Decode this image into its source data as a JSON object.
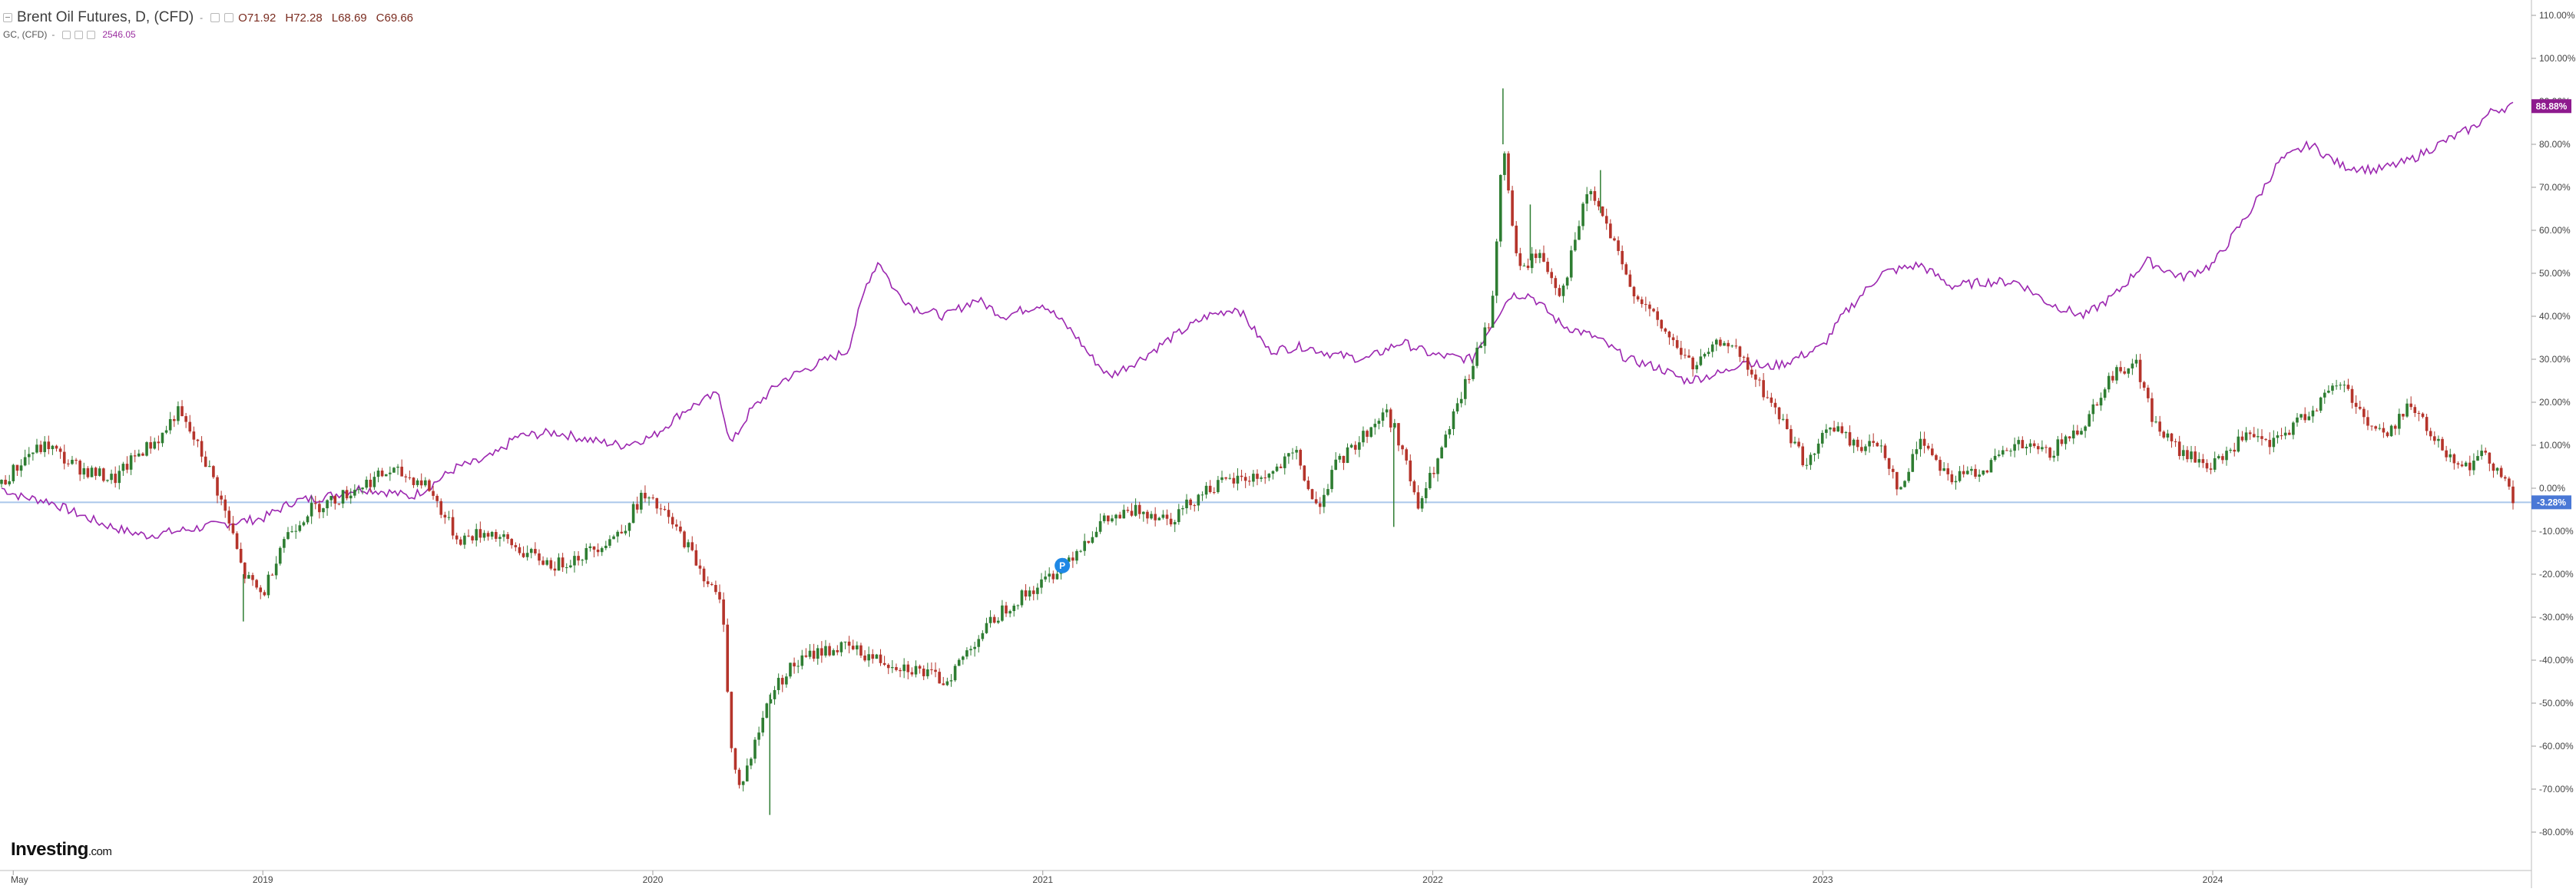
{
  "legend": {
    "symbol": "Brent Oil Futures, D, (CFD)",
    "dash": "-",
    "ohlc": {
      "open": "O71.92",
      "high": "H72.28",
      "low": "L68.69",
      "close": "C69.66"
    },
    "compare_symbol": "GC, (CFD)",
    "compare_value": "2546.05"
  },
  "logo": {
    "name": "Investing",
    "suffix": ".com"
  },
  "colors": {
    "up_candle": "#2e7d32",
    "down_candle": "#b5342b",
    "gold_line": "#9c27b0",
    "baseline": "#aac7ea",
    "gold_badge": "#8e1a8e",
    "brent_badge": "#4a78d6"
  },
  "icons": {
    "legend_toggle": "collapse-icon",
    "marker": "event-marker-icon"
  },
  "chart_data": {
    "type": "line",
    "y_unit": "percent change",
    "y_axis_side": "right",
    "ylim": [
      -84,
      113
    ],
    "yticks": [
      110,
      100,
      90,
      80,
      70,
      60,
      50,
      40,
      30,
      20,
      10,
      0,
      -10,
      -20,
      -30,
      -40,
      -50,
      -60,
      -70,
      -80
    ],
    "ytick_labels": [
      "110.00%",
      "100.00%",
      "90.00%",
      "80.00%",
      "70.00%",
      "60.00%",
      "50.00%",
      "40.00%",
      "30.00%",
      "20.00%",
      "10.00%",
      "0.00%",
      "-10.00%",
      "-20.00%",
      "-30.00%",
      "-40.00%",
      "-50.00%",
      "-60.00%",
      "-70.00%",
      "-80.00%"
    ],
    "xlim": [
      2018.33,
      2024.77
    ],
    "xticks": [
      2018.36,
      2019.0,
      2020.0,
      2021.0,
      2022.0,
      2023.0,
      2024.0
    ],
    "xtick_labels": [
      "May",
      "2019",
      "2020",
      "2021",
      "2022",
      "2023",
      "2024"
    ],
    "grid": false,
    "baseline_value": -3.28,
    "series": [
      {
        "kind": "candlestick",
        "last_value_label": "-3.28%",
        "x": [
          2018.33,
          2018.4,
          2018.45,
          2018.5,
          2018.55,
          2018.62,
          2018.68,
          2018.74,
          2018.78,
          2018.82,
          2018.87,
          2018.92,
          2018.95,
          2019.0,
          2019.05,
          2019.12,
          2019.2,
          2019.28,
          2019.33,
          2019.42,
          2019.5,
          2019.58,
          2019.67,
          2019.75,
          2019.83,
          2019.92,
          2019.97,
          2020.02,
          2020.08,
          2020.13,
          2020.18,
          2020.2,
          2020.22,
          2020.25,
          2020.3,
          2020.35,
          2020.42,
          2020.5,
          2020.58,
          2020.67,
          2020.75,
          2020.83,
          2020.9,
          2021.0,
          2021.08,
          2021.15,
          2021.25,
          2021.33,
          2021.42,
          2021.5,
          2021.58,
          2021.65,
          2021.7,
          2021.75,
          2021.83,
          2021.88,
          2021.92,
          2021.96,
          2022.02,
          2022.1,
          2022.15,
          2022.18,
          2022.22,
          2022.27,
          2022.33,
          2022.4,
          2022.45,
          2022.5,
          2022.58,
          2022.67,
          2022.75,
          2022.83,
          2022.9,
          2022.96,
          2023.02,
          2023.08,
          2023.15,
          2023.2,
          2023.25,
          2023.33,
          2023.42,
          2023.5,
          2023.58,
          2023.67,
          2023.73,
          2023.8,
          2023.85,
          2023.92,
          2024.0,
          2024.08,
          2024.15,
          2024.25,
          2024.33,
          2024.4,
          2024.45,
          2024.5,
          2024.58,
          2024.65,
          2024.7,
          2024.75,
          2024.77
        ],
        "values": [
          1,
          8,
          10,
          6,
          4,
          2,
          8,
          12,
          18,
          12,
          3,
          -10,
          -20,
          -25,
          -12,
          -5,
          -2,
          2,
          4,
          1,
          -12,
          -10,
          -15,
          -18,
          -15,
          -10,
          -2,
          -5,
          -12,
          -20,
          -28,
          -60,
          -70,
          -63,
          -48,
          -42,
          -38,
          -37,
          -40,
          -42,
          -45,
          -35,
          -28,
          -22,
          -15,
          -8,
          -5,
          -7,
          0,
          2,
          3,
          8,
          -5,
          5,
          13,
          18,
          10,
          -5,
          8,
          28,
          40,
          80,
          50,
          55,
          45,
          70,
          60,
          48,
          38,
          28,
          35,
          25,
          15,
          5,
          15,
          10,
          10,
          -1,
          12,
          2,
          5,
          10,
          8,
          15,
          25,
          30,
          15,
          8,
          5,
          12,
          10,
          18,
          25,
          15,
          12,
          20,
          10,
          5,
          8,
          2,
          -3.28
        ],
        "highs": [
          {
            "x": 2022.18,
            "value": 93
          },
          {
            "x": 2022.25,
            "value": 66
          },
          {
            "x": 2022.43,
            "value": 74
          }
        ],
        "lows": [
          {
            "x": 2020.3,
            "value": -76
          },
          {
            "x": 2018.95,
            "value": -31
          },
          {
            "x": 2021.9,
            "value": -9
          }
        ]
      },
      {
        "kind": "line",
        "name": "GC, (CFD)",
        "last_value_label": "88.88%",
        "x": [
          2018.33,
          2018.38,
          2018.45,
          2018.5,
          2018.58,
          2018.65,
          2018.7,
          2018.78,
          2018.85,
          2018.92,
          2019.0,
          2019.08,
          2019.16,
          2019.25,
          2019.33,
          2019.38,
          2019.42,
          2019.5,
          2019.55,
          2019.6,
          2019.65,
          2019.75,
          2019.85,
          2019.92,
          2020.0,
          2020.08,
          2020.12,
          2020.17,
          2020.2,
          2020.25,
          2020.33,
          2020.4,
          2020.5,
          2020.55,
          2020.58,
          2020.62,
          2020.67,
          2020.75,
          2020.83,
          2020.9,
          2021.0,
          2021.08,
          2021.12,
          2021.17,
          2021.25,
          2021.33,
          2021.42,
          2021.5,
          2021.58,
          2021.67,
          2021.75,
          2021.83,
          2021.92,
          2022.0,
          2022.1,
          2022.15,
          2022.2,
          2022.25,
          2022.33,
          2022.42,
          2022.5,
          2022.58,
          2022.65,
          2022.75,
          2022.8,
          2022.85,
          2022.9,
          2023.0,
          2023.05,
          2023.1,
          2023.15,
          2023.25,
          2023.33,
          2023.42,
          2023.5,
          2023.58,
          2023.67,
          2023.75,
          2023.83,
          2023.92,
          2024.0,
          2024.1,
          2024.17,
          2024.25,
          2024.33,
          2024.42,
          2024.5,
          2024.58,
          2024.67,
          2024.72,
          2024.77
        ],
        "values": [
          0,
          -2,
          -3,
          -5,
          -8,
          -10,
          -11,
          -10,
          -9,
          -8,
          -7,
          -3,
          -2,
          0,
          -1,
          -2,
          0,
          5,
          6,
          8,
          12,
          13,
          11,
          10,
          12,
          18,
          20,
          22,
          10,
          18,
          25,
          28,
          32,
          48,
          53,
          46,
          42,
          40,
          44,
          40,
          43,
          36,
          31,
          26,
          30,
          35,
          40,
          42,
          32,
          33,
          31,
          30,
          34,
          31,
          30,
          38,
          45,
          45,
          38,
          35,
          30,
          28,
          25,
          27,
          30,
          28,
          29,
          33,
          40,
          45,
          50,
          52,
          47,
          48,
          48,
          43,
          40,
          45,
          53,
          49,
          52,
          65,
          76,
          80,
          75,
          74,
          76,
          80,
          84,
          88,
          88.88
        ]
      }
    ]
  }
}
